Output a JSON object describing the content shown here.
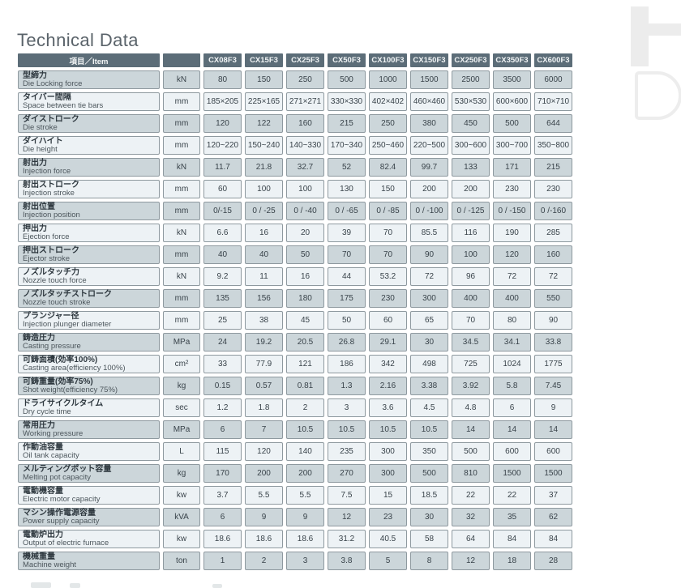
{
  "page": {
    "title": "Technical Data"
  },
  "colors": {
    "header_bg": "#5c6d78",
    "header_text": "#f2f5f6",
    "shaded_cell_bg": "#ccd6da",
    "light_cell_bg": "#edf2f5",
    "cell_border": "#8e999f",
    "title_text": "#5a636a",
    "watermark": "#ececec"
  },
  "table": {
    "item_header": "項目／Item",
    "unit_header": "",
    "models": [
      "CX08F3",
      "CX15F3",
      "CX25F3",
      "CX50F3",
      "CX100F3",
      "CX150F3",
      "CX250F3",
      "CX350F3",
      "CX600F3"
    ],
    "rows": [
      {
        "jp": "型締力",
        "en": "Die Locking force",
        "unit": "kN",
        "values": [
          "80",
          "150",
          "250",
          "500",
          "1000",
          "1500",
          "2500",
          "3500",
          "6000"
        ]
      },
      {
        "jp": "タイバー間隔",
        "en": "Space between tie bars",
        "unit": "mm",
        "values": [
          "185×205",
          "225×165",
          "271×271",
          "330×330",
          "402×402",
          "460×460",
          "530×530",
          "600×600",
          "710×710"
        ]
      },
      {
        "jp": "ダイストローク",
        "en": "Die stroke",
        "unit": "mm",
        "values": [
          "120",
          "122",
          "160",
          "215",
          "250",
          "380",
          "450",
          "500",
          "644"
        ]
      },
      {
        "jp": "ダイハイト",
        "en": "Die height",
        "unit": "mm",
        "values": [
          "120~220",
          "150~240",
          "140~330",
          "170~340",
          "250~460",
          "220~500",
          "300~600",
          "300~700",
          "350~800"
        ]
      },
      {
        "jp": "射出力",
        "en": "Injection force",
        "unit": "kN",
        "values": [
          "11.7",
          "21.8",
          "32.7",
          "52",
          "82.4",
          "99.7",
          "133",
          "171",
          "215"
        ]
      },
      {
        "jp": "射出ストローク",
        "en": "Injection stroke",
        "unit": "mm",
        "values": [
          "60",
          "100",
          "100",
          "130",
          "150",
          "200",
          "200",
          "230",
          "230"
        ]
      },
      {
        "jp": "射出位置",
        "en": "Injection position",
        "unit": "mm",
        "values": [
          "0/-15",
          "0 / -25",
          "0 / -40",
          "0 / -65",
          "0 / -85",
          "0 / -100",
          "0 / -125",
          "0 / -150",
          "0 /-160"
        ]
      },
      {
        "jp": "押出力",
        "en": "Ejection force",
        "unit": "kN",
        "values": [
          "6.6",
          "16",
          "20",
          "39",
          "70",
          "85.5",
          "116",
          "190",
          "285"
        ]
      },
      {
        "jp": "押出ストローク",
        "en": "Ejector stroke",
        "unit": "mm",
        "values": [
          "40",
          "40",
          "50",
          "70",
          "70",
          "90",
          "100",
          "120",
          "160"
        ]
      },
      {
        "jp": "ノズルタッチ力",
        "en": "Nozzle touch force",
        "unit": "kN",
        "values": [
          "9.2",
          "11",
          "16",
          "44",
          "53.2",
          "72",
          "96",
          "72",
          "72"
        ]
      },
      {
        "jp": "ノズルタッチストローク",
        "en": "Nozzle touch stroke",
        "unit": "mm",
        "values": [
          "135",
          "156",
          "180",
          "175",
          "230",
          "300",
          "400",
          "400",
          "550"
        ]
      },
      {
        "jp": "プランジャー径",
        "en": "Injection plunger diameter",
        "unit": "mm",
        "values": [
          "25",
          "38",
          "45",
          "50",
          "60",
          "65",
          "70",
          "80",
          "90"
        ]
      },
      {
        "jp": "鋳造圧力",
        "en": "Casting pressure",
        "unit": "MPa",
        "values": [
          "24",
          "19.2",
          "20.5",
          "26.8",
          "29.1",
          "30",
          "34.5",
          "34.1",
          "33.8"
        ]
      },
      {
        "jp": "可鋳面積(効率100%)",
        "en": "Casting area(efficiency 100%)",
        "unit": "cm²",
        "values": [
          "33",
          "77.9",
          "121",
          "186",
          "342",
          "498",
          "725",
          "1024",
          "1775"
        ]
      },
      {
        "jp": "可鋳重量(効率75%)",
        "en": "Shot weight(efficiency 75%)",
        "unit": "kg",
        "values": [
          "0.15",
          "0.57",
          "0.81",
          "1.3",
          "2.16",
          "3.38",
          "3.92",
          "5.8",
          "7.45"
        ]
      },
      {
        "jp": "ドライサイクルタイム",
        "en": "Dry cycle time",
        "unit": "sec",
        "values": [
          "1.2",
          "1.8",
          "2",
          "3",
          "3.6",
          "4.5",
          "4.8",
          "6",
          "9"
        ]
      },
      {
        "jp": "常用圧力",
        "en": "Working pressure",
        "unit": "MPa",
        "values": [
          "6",
          "7",
          "10.5",
          "10.5",
          "10.5",
          "10.5",
          "14",
          "14",
          "14"
        ]
      },
      {
        "jp": "作動油容量",
        "en": "Oil tank capacity",
        "unit": "L",
        "values": [
          "115",
          "120",
          "140",
          "235",
          "300",
          "350",
          "500",
          "600",
          "600"
        ]
      },
      {
        "jp": "メルティングポット容量",
        "en": "Melting pot capacity",
        "unit": "kg",
        "values": [
          "170",
          "200",
          "200",
          "270",
          "300",
          "500",
          "810",
          "1500",
          "1500"
        ]
      },
      {
        "jp": "電動機容量",
        "en": "Electric motor capacity",
        "unit": "kw",
        "values": [
          "3.7",
          "5.5",
          "5.5",
          "7.5",
          "15",
          "18.5",
          "22",
          "22",
          "37"
        ]
      },
      {
        "jp": "マシン操作電源容量",
        "en": "Power supply capacity",
        "unit": "kVA",
        "values": [
          "6",
          "9",
          "9",
          "12",
          "23",
          "30",
          "32",
          "35",
          "62"
        ]
      },
      {
        "jp": "電動炉出力",
        "en": "Output of electric furnace",
        "unit": "kw",
        "values": [
          "18.6",
          "18.6",
          "18.6",
          "31.2",
          "40.5",
          "58",
          "64",
          "84",
          "84"
        ]
      },
      {
        "jp": "機械重量",
        "en": "Machine weight",
        "unit": "ton",
        "values": [
          "1",
          "2",
          "3",
          "3.8",
          "5",
          "8",
          "12",
          "18",
          "28"
        ]
      }
    ]
  }
}
